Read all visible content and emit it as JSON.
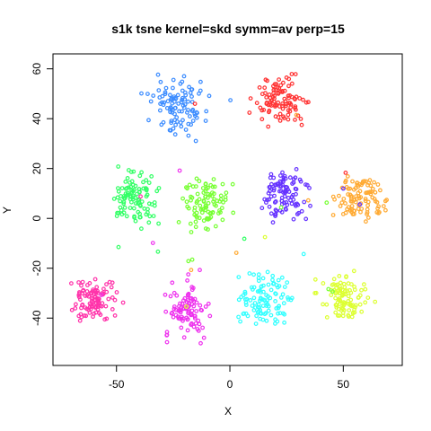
{
  "chart_data": {
    "type": "scatter",
    "title": "s1k tsne kernel=skd symm=av perp=15",
    "xlabel": "X",
    "ylabel": "Y",
    "xlim": [
      -78,
      76
    ],
    "ylim": [
      -59,
      66
    ],
    "xticks": [
      -50,
      0,
      50
    ],
    "yticks": [
      -40,
      -20,
      0,
      20,
      40,
      60
    ],
    "xtick_labels": [
      "-50",
      "0",
      "50"
    ],
    "ytick_labels": [
      "-40",
      "-20",
      "0",
      "20",
      "40",
      "60"
    ],
    "grid": false,
    "legend": "none",
    "marker": "open circle",
    "series": [
      {
        "color": "#3c8cff",
        "center": [
          -23,
          45
        ],
        "spread": [
          11,
          10
        ],
        "count": 100
      },
      {
        "color": "#ff3333",
        "center": [
          23,
          47
        ],
        "spread": [
          10,
          8
        ],
        "count": 95
      },
      {
        "color": "#33ff66",
        "center": [
          -42,
          8
        ],
        "spread": [
          9,
          9
        ],
        "count": 100
      },
      {
        "color": "#77ff33",
        "center": [
          -11,
          5
        ],
        "spread": [
          9,
          10
        ],
        "count": 95
      },
      {
        "color": "#6633ff",
        "center": [
          24,
          10
        ],
        "spread": [
          9,
          9
        ],
        "count": 95
      },
      {
        "color": "#ffaa33",
        "center": [
          58,
          8
        ],
        "spread": [
          9,
          9
        ],
        "count": 100
      },
      {
        "color": "#ff33aa",
        "center": [
          -60,
          -33
        ],
        "spread": [
          9,
          8
        ],
        "count": 100
      },
      {
        "color": "#ee33ee",
        "center": [
          -19,
          -37
        ],
        "spread": [
          9,
          9
        ],
        "count": 100
      },
      {
        "color": "#33ffff",
        "center": [
          16,
          -32
        ],
        "spread": [
          10,
          9
        ],
        "count": 105
      },
      {
        "color": "#ddff33",
        "center": [
          50,
          -32
        ],
        "spread": [
          9,
          8
        ],
        "count": 100
      }
    ]
  }
}
